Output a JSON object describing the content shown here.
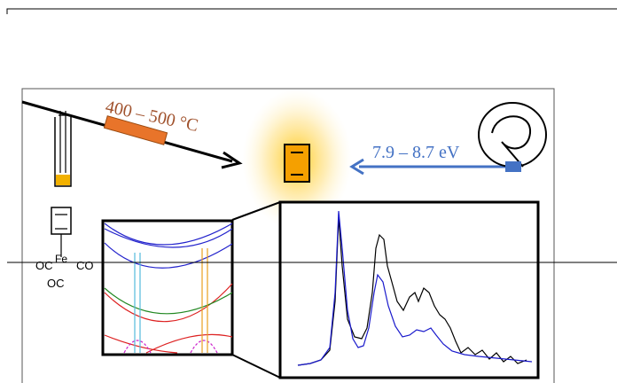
{
  "labels": {
    "temperature": "400 – 500 °C",
    "energy": "7.9 – 8.7 eV"
  },
  "molecule": {
    "ligand_left": "OC",
    "metal": "Fe",
    "ligand_right": "CO",
    "ligand_bottom": "OC"
  }
}
